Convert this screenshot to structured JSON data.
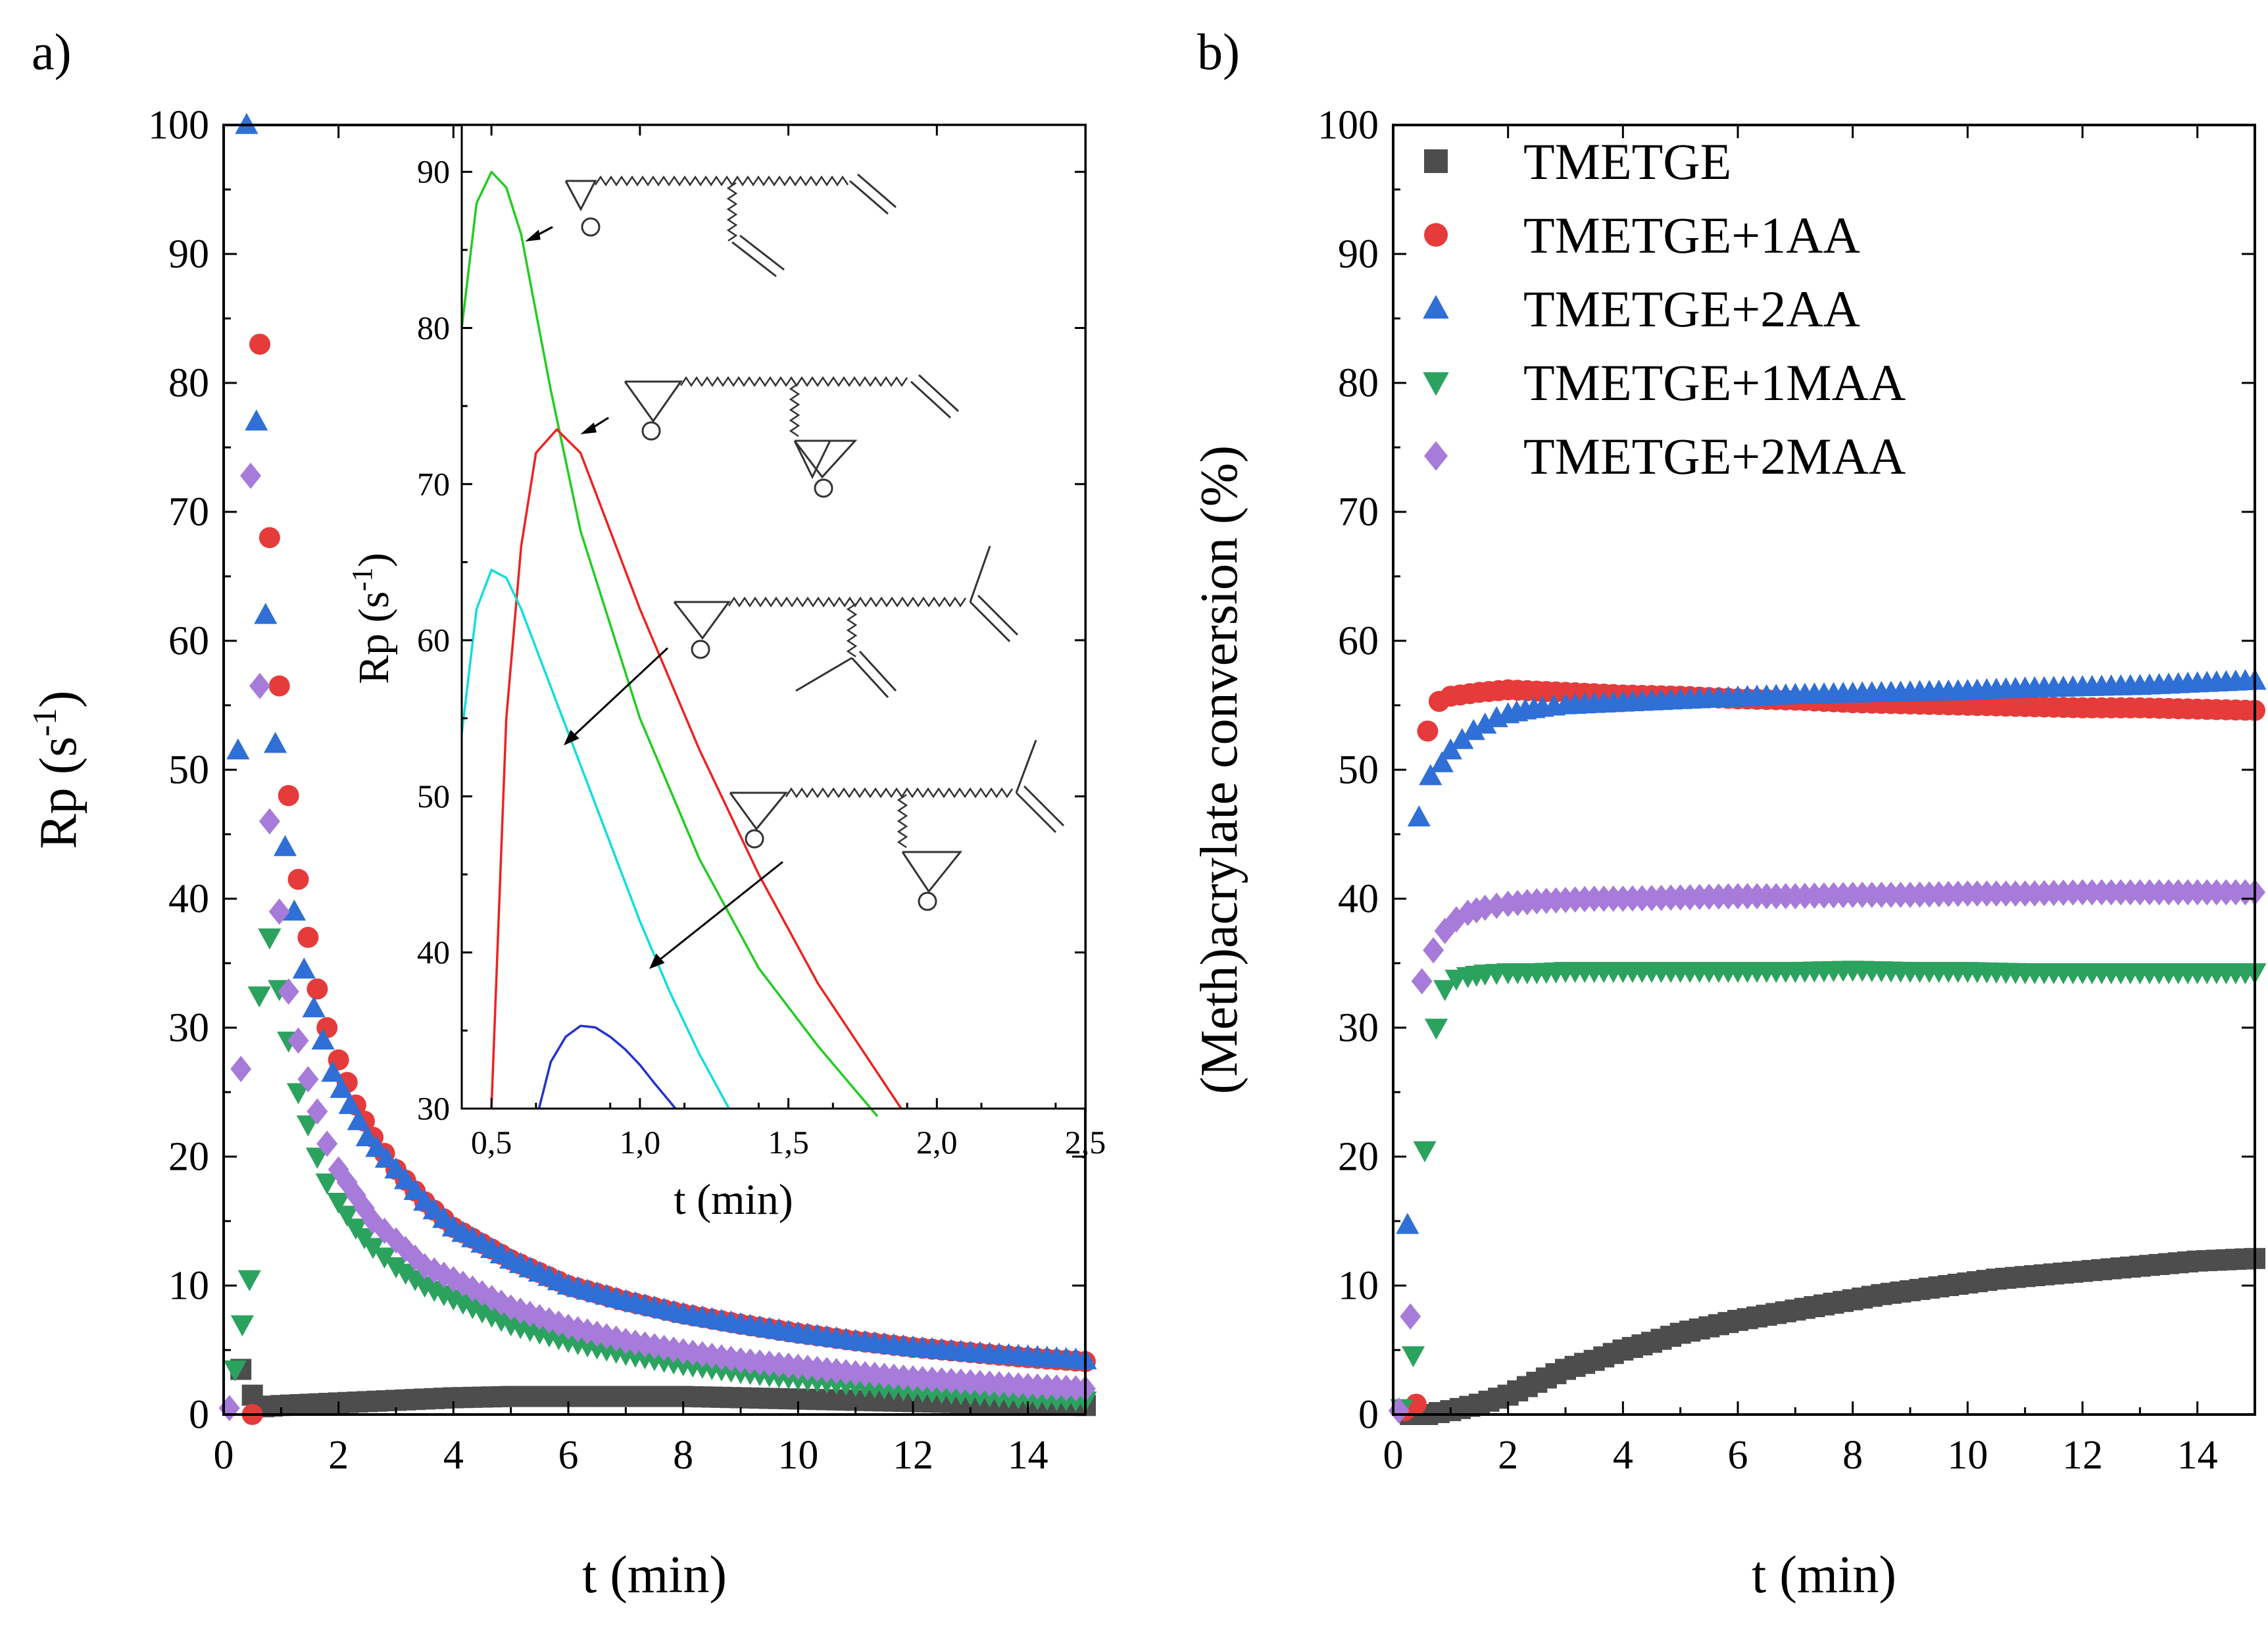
{
  "colors": {
    "TMETGE": "#4d4d4d",
    "TMETGE+1AA": "#e53b3b",
    "TMETGE+2AA": "#2f6fd6",
    "TMETGE+1MAA": "#2ca25f",
    "TMETGE+2MAA": "#a77bd9",
    "inset_green": "#22cc22",
    "inset_red": "#ee2222",
    "inset_cyan": "#11dddd",
    "inset_blue": "#2233cc"
  },
  "chart_data": [
    {
      "panel_label": "a)",
      "type": "scatter",
      "xlabel": "t (min)",
      "ylabel": "Rp (s",
      "ylabel_sup": "-1",
      "ylabel_close": ")",
      "xlim": [
        0,
        15
      ],
      "ylim": [
        0,
        100
      ],
      "xticks": [
        0,
        2,
        4,
        6,
        8,
        10,
        12,
        14
      ],
      "yticks": [
        0,
        10,
        20,
        30,
        40,
        50,
        60,
        70,
        80,
        90,
        100
      ],
      "xtick_labels": [
        "0",
        "2",
        "4",
        "6",
        "8",
        "10",
        "12",
        "14"
      ],
      "ytick_labels": [
        "0",
        "10",
        "20",
        "30",
        "40",
        "50",
        "60",
        "70",
        "80",
        "90",
        "100"
      ],
      "series": [
        {
          "name": "TMETGE",
          "marker": "square",
          "x": [
            0.3,
            0.5,
            0.7,
            1,
            1.5,
            2,
            3,
            4,
            5,
            6,
            7,
            8,
            9,
            10,
            11,
            12,
            13,
            14,
            15
          ],
          "y": [
            3.5,
            1.5,
            0.6,
            0.7,
            0.8,
            0.9,
            1.1,
            1.3,
            1.4,
            1.4,
            1.4,
            1.4,
            1.3,
            1.2,
            1.1,
            1.0,
            0.9,
            0.8,
            0.7
          ]
        },
        {
          "name": "TMETGE+1AA",
          "marker": "circle",
          "x": [
            0.5,
            0.63,
            0.8,
            0.97,
            1.13,
            1.3,
            1.47,
            1.63,
            1.8,
            2,
            2.3,
            2.6,
            3,
            3.5,
            4,
            5,
            6,
            7,
            8,
            9,
            10,
            11,
            12,
            13,
            14,
            15
          ],
          "y": [
            0,
            83,
            68,
            56.5,
            48,
            41.5,
            37,
            33,
            30,
            27.5,
            24,
            21.5,
            19,
            16.5,
            14.5,
            12,
            10,
            8.8,
            7.8,
            7,
            6.3,
            5.7,
            5.2,
            4.8,
            4.4,
            4.1
          ]
        },
        {
          "name": "TMETGE+2AA",
          "marker": "triangle-up",
          "x": [
            0.25,
            0.4,
            0.57,
            0.73,
            0.9,
            1.07,
            1.23,
            1.4,
            1.57,
            1.73,
            1.9,
            2.2,
            2.5,
            3,
            3.5,
            4,
            5,
            6,
            7,
            8,
            9,
            10,
            11,
            12,
            13,
            14,
            15
          ],
          "y": [
            51.5,
            100,
            77,
            62,
            52,
            44,
            39,
            34.5,
            31.5,
            29,
            26.5,
            24,
            21.5,
            19,
            16.5,
            14.5,
            12,
            10,
            8.8,
            7.8,
            7,
            6.3,
            5.7,
            5.2,
            4.8,
            4.5,
            4.2
          ]
        },
        {
          "name": "TMETGE+1MAA",
          "marker": "triangle-down",
          "x": [
            0.2,
            0.45,
            0.62,
            0.8,
            0.97,
            1.13,
            1.3,
            1.47,
            1.63,
            1.8,
            2,
            2.3,
            2.6,
            3,
            3.5,
            4,
            5,
            6,
            7,
            8,
            9,
            10,
            11,
            12,
            13,
            14,
            15
          ],
          "y": [
            3.5,
            10.5,
            32.5,
            37,
            33,
            29,
            25,
            22.5,
            20,
            18,
            16.5,
            14.5,
            13,
            11.5,
            10,
            9,
            7,
            5.7,
            4.7,
            3.9,
            3.3,
            2.8,
            2.3,
            1.9,
            1.6,
            1.3,
            1.1
          ]
        },
        {
          "name": "TMETGE+2MAA",
          "marker": "diamond",
          "x": [
            0.1,
            0.3,
            0.47,
            0.63,
            0.8,
            0.97,
            1.13,
            1.3,
            1.47,
            1.63,
            1.8,
            2,
            2.3,
            2.6,
            3,
            3.5,
            4,
            5,
            6,
            7,
            8,
            9,
            10,
            11,
            12,
            13,
            14,
            15
          ],
          "y": [
            0.5,
            26.8,
            72.8,
            56.5,
            46,
            39,
            32.8,
            29,
            26,
            23.5,
            21,
            19,
            17,
            15,
            13.5,
            11.5,
            10.5,
            8.3,
            6.8,
            5.7,
            4.9,
            4.2,
            3.7,
            3.2,
            2.8,
            2.5,
            2.2,
            2.0
          ]
        }
      ],
      "inset": {
        "type": "line",
        "xlabel": "t (min)",
        "ylabel": "Rp (s",
        "ylabel_sup": "-1",
        "ylabel_close": ")",
        "xlim": [
          0.4,
          2.5
        ],
        "ylim": [
          30,
          93
        ],
        "xticks": [
          0.5,
          1.0,
          1.5,
          2.0,
          2.5
        ],
        "yticks": [
          30,
          40,
          50,
          60,
          70,
          80,
          90
        ],
        "xtick_labels": [
          "0,5",
          "1,0",
          "1,5",
          "2,0",
          "2,5"
        ],
        "ytick_labels": [
          "30",
          "40",
          "50",
          "60",
          "70",
          "80",
          "90"
        ],
        "series": [
          {
            "name": "green",
            "x": [
              0.4,
              0.45,
              0.5,
              0.55,
              0.6,
              0.7,
              0.8,
              1.0,
              1.2,
              1.4,
              1.6,
              1.8
            ],
            "y": [
              80,
              88,
              90,
              89,
              86,
              76,
              67,
              55,
              46,
              39,
              34,
              29.5
            ]
          },
          {
            "name": "red",
            "x": [
              0.5,
              0.55,
              0.6,
              0.65,
              0.72,
              0.8,
              0.9,
              1.0,
              1.2,
              1.4,
              1.6,
              1.88
            ],
            "y": [
              30,
              55,
              66,
              72,
              73.5,
              72,
              67,
              62,
              53,
              45,
              38,
              30
            ]
          },
          {
            "name": "cyan",
            "x": [
              0.4,
              0.45,
              0.5,
              0.55,
              0.6,
              0.7,
              0.8,
              0.9,
              1.0,
              1.1,
              1.2,
              1.3
            ],
            "y": [
              54,
              62,
              64.5,
              64,
              62,
              57,
              52,
              47,
              42,
              37.5,
              33.5,
              30
            ]
          },
          {
            "name": "blue",
            "x": [
              0.66,
              0.7,
              0.75,
              0.8,
              0.85,
              0.9,
              0.95,
              1.0,
              1.05,
              1.12
            ],
            "y": [
              30,
              33,
              34.6,
              35.3,
              35.2,
              34.6,
              33.8,
              32.8,
              31.6,
              30
            ]
          }
        ]
      }
    },
    {
      "panel_label": "b)",
      "type": "scatter",
      "xlabel": "t (min)",
      "ylabel": "(Meth)acrylate conversion (%)",
      "xlim": [
        0,
        15
      ],
      "ylim": [
        0,
        100
      ],
      "xticks": [
        0,
        2,
        4,
        6,
        8,
        10,
        12,
        14
      ],
      "yticks": [
        0,
        10,
        20,
        30,
        40,
        50,
        60,
        70,
        80,
        90,
        100
      ],
      "xtick_labels": [
        "0",
        "2",
        "4",
        "6",
        "8",
        "10",
        "12",
        "14"
      ],
      "ytick_labels": [
        "0",
        "10",
        "20",
        "30",
        "40",
        "50",
        "60",
        "70",
        "80",
        "90",
        "100"
      ],
      "legend": [
        "TMETGE",
        "TMETGE+1AA",
        "TMETGE+2AA",
        "TMETGE+1MAA",
        "TMETGE+2MAA"
      ],
      "legend_position": "top-left",
      "series": [
        {
          "name": "TMETGE",
          "marker": "square",
          "x": [
            0.3,
            0.6,
            1,
            1.5,
            2,
            2.5,
            3,
            3.5,
            4,
            4.5,
            5,
            5.5,
            6,
            6.5,
            7,
            7.5,
            8,
            8.5,
            9,
            9.5,
            10,
            10.5,
            11,
            11.5,
            12,
            12.5,
            13,
            13.5,
            14,
            14.5,
            15
          ],
          "y": [
            0,
            0,
            0.3,
            0.8,
            1.5,
            2.5,
            3.5,
            4.2,
            5,
            5.6,
            6.3,
            6.8,
            7.3,
            7.7,
            8.1,
            8.5,
            8.9,
            9.3,
            9.6,
            9.9,
            10.2,
            10.5,
            10.7,
            10.9,
            11.1,
            11.3,
            11.5,
            11.7,
            11.9,
            12.0,
            12.1
          ]
        },
        {
          "name": "TMETGE+1AA",
          "marker": "circle",
          "x": [
            0.2,
            0.4,
            0.6,
            0.8,
            1,
            1.5,
            2,
            2.5,
            3,
            3.5,
            4,
            5,
            6,
            7,
            8,
            9,
            10,
            11,
            12,
            13,
            14,
            15
          ],
          "y": [
            0.3,
            0.8,
            53,
            55.3,
            55.7,
            56,
            56.2,
            56.1,
            56,
            55.9,
            55.8,
            55.7,
            55.5,
            55.4,
            55.2,
            55.1,
            55,
            54.9,
            54.8,
            54.8,
            54.7,
            54.6
          ]
        },
        {
          "name": "TMETGE+2AA",
          "marker": "triangle-up",
          "x": [
            0.25,
            0.45,
            0.65,
            0.85,
            1,
            1.2,
            1.4,
            1.6,
            1.8,
            2,
            2.3,
            2.6,
            3,
            3.5,
            4,
            5,
            6,
            7,
            8,
            9,
            10,
            11,
            12,
            13,
            14,
            15
          ],
          "y": [
            14.7,
            46.3,
            49.5,
            50.5,
            51.5,
            52.3,
            53,
            53.5,
            54,
            54.3,
            54.6,
            54.8,
            55,
            55.1,
            55.2,
            55.4,
            55.6,
            55.8,
            55.9,
            56,
            56.1,
            56.3,
            56.4,
            56.5,
            56.7,
            56.9
          ]
        },
        {
          "name": "TMETGE+1MAA",
          "marker": "triangle-down",
          "x": [
            0.15,
            0.35,
            0.55,
            0.75,
            0.9,
            1.1,
            1.3,
            1.6,
            2,
            2.5,
            3,
            3.5,
            4,
            5,
            6,
            7,
            8,
            9,
            10,
            11,
            12,
            13,
            14,
            15
          ],
          "y": [
            0.5,
            4.6,
            20.5,
            30,
            33,
            33.8,
            34,
            34.2,
            34.3,
            34.3,
            34.4,
            34.4,
            34.4,
            34.4,
            34.4,
            34.4,
            34.5,
            34.4,
            34.4,
            34.3,
            34.3,
            34.3,
            34.3,
            34.3
          ]
        },
        {
          "name": "TMETGE+2MAA",
          "marker": "diamond",
          "x": [
            0.1,
            0.3,
            0.5,
            0.7,
            0.9,
            1.1,
            1.3,
            1.6,
            2,
            2.5,
            3,
            3.5,
            4,
            5,
            6,
            7,
            8,
            9,
            10,
            11,
            12,
            13,
            14,
            15
          ],
          "y": [
            0.3,
            7.6,
            33.6,
            36,
            37.5,
            38.4,
            38.9,
            39.3,
            39.6,
            39.8,
            39.9,
            40,
            40,
            40.1,
            40.2,
            40.2,
            40.3,
            40.3,
            40.4,
            40.4,
            40.5,
            40.5,
            40.5,
            40.5
          ]
        }
      ]
    }
  ]
}
